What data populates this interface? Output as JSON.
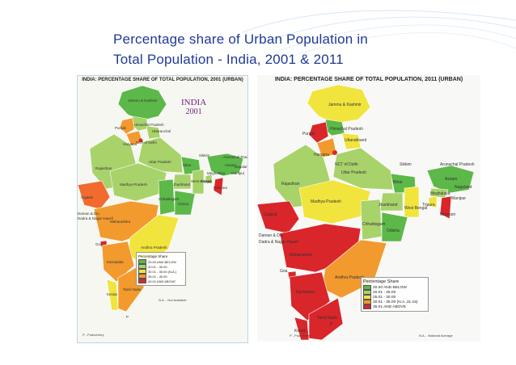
{
  "slide": {
    "title_line1": "Percentage share of Urban Population in",
    "title_line2": "Total Population - India, 2001 & 2011"
  },
  "colors": {
    "title": "#1f3a93",
    "green": "#5cb848",
    "light_green": "#a8d26a",
    "yellow": "#f1e43c",
    "orange": "#f29a2e",
    "red": "#d9262a"
  },
  "map_2001": {
    "header": "INDIA: PERCENTAGE SHARE OF TOTAL POPULATION, 2001 (URBAN)",
    "year_tag_line1": "INDIA",
    "year_tag_line2": "2001",
    "state_labels": [
      "Jammu & Kashmir",
      "Himachal Pradesh",
      "Punjab",
      "Uttaranchal",
      "NCT of Delhi",
      "Haryana",
      "Rajasthan",
      "Uttar Pradesh",
      "Bihar",
      "Sikkim",
      "Arunachal Pradesh",
      "Assam",
      "Meghalaya",
      "Nagaland",
      "Manipur",
      "Tripura",
      "Mizoram",
      "Jharkhand",
      "West Bengal",
      "Gujarat",
      "Madhya Pradesh",
      "Chhattisgarh",
      "Orissa",
      "Maharashtra",
      "Andhra Pradesh",
      "Goa",
      "Karnataka",
      "Kerala",
      "Tamil Nadu",
      "Daman & Diu",
      "Dadra & Nagar Haveli",
      "P"
    ],
    "legend": {
      "title": "Percentage Share",
      "items": [
        "20.00 AND BELOW",
        "20.01 - 30.00",
        "30.01 - 35.00 (N.A.)",
        "35.01 - 40.00",
        "40.01 AND ABOVE"
      ]
    },
    "footnote_left": "P - Puducherry",
    "footnote_right": "N.A. - Not Available"
  },
  "map_2011": {
    "header": "INDIA: PERCENTAGE SHARE OF TOTAL POPULATION, 2011 (URBAN)",
    "state_labels": [
      "Jammu & Kashmir",
      "Himachal Pradesh",
      "Punjab",
      "Uttarakhand",
      "NCT of Delhi",
      "Haryana",
      "Rajasthan",
      "Uttar Pradesh",
      "Bihar",
      "Sikkim",
      "Arunachal Pradesh",
      "Assam",
      "Meghalaya",
      "Nagaland",
      "Manipur",
      "Tripura",
      "Mizoram",
      "Jharkhand",
      "West Bengal",
      "Gujarat",
      "Madhya Pradesh",
      "Chhattisgarh",
      "Odisha",
      "Maharashtra",
      "Andhra Pradesh",
      "Goa",
      "Karnataka",
      "Kerala",
      "Tamil Nadu",
      "Daman & Diu",
      "Dadra & Nagar Haveli",
      "P"
    ],
    "legend": {
      "title": "Percentage Share",
      "items": [
        "20.00 AND BELOW",
        "20.01 - 25.00",
        "25.01 - 30.00",
        "30.01 - 35.00 (N.A.,31.16)",
        "35.01 AND ABOVE"
      ]
    },
    "footnote_left": "P - Puducherry",
    "footnote_right": "N.A. - National Average"
  }
}
